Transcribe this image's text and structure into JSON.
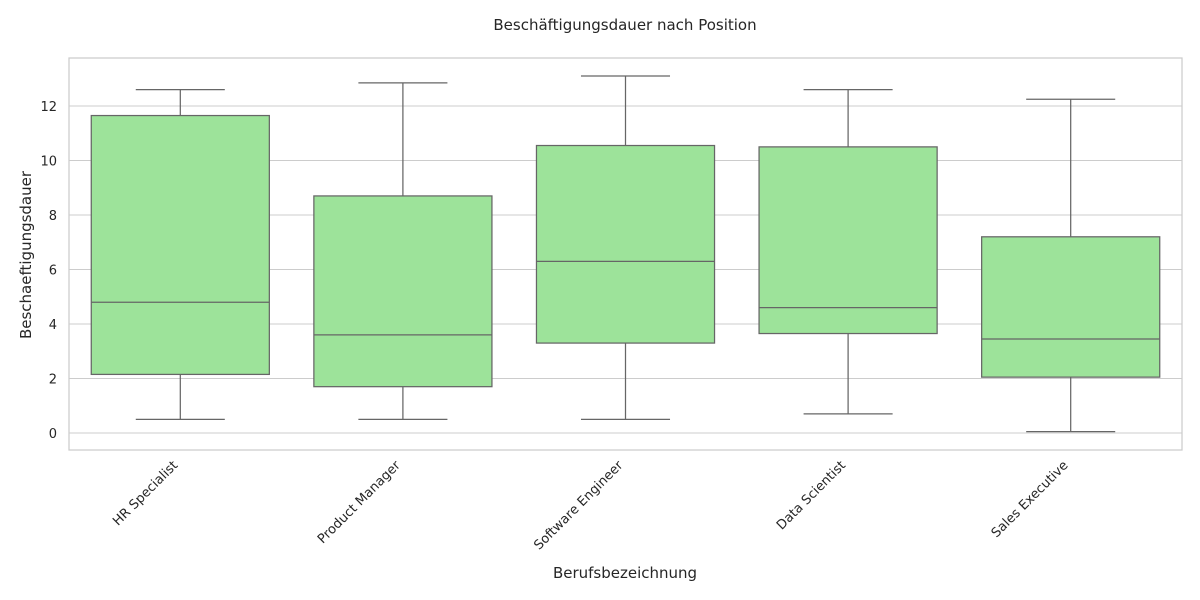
{
  "chart_data": {
    "type": "box",
    "title": "Beschäftigungsdauer nach Position",
    "xlabel": "Berufsbezeichnung",
    "ylabel": "Beschaeftigungsdauer",
    "categories": [
      "HR Specialist",
      "Product Manager",
      "Software Engineer",
      "Data Scientist",
      "Sales Executive"
    ],
    "boxes": [
      {
        "min": 0.5,
        "q1": 2.15,
        "median": 4.8,
        "q3": 11.65,
        "max": 12.6
      },
      {
        "min": 0.5,
        "q1": 1.7,
        "median": 3.6,
        "q3": 8.7,
        "max": 12.85
      },
      {
        "min": 0.5,
        "q1": 3.3,
        "median": 6.3,
        "q3": 10.55,
        "max": 13.1
      },
      {
        "min": 0.7,
        "q1": 3.65,
        "median": 4.6,
        "q3": 10.5,
        "max": 12.6
      },
      {
        "min": 0.05,
        "q1": 2.05,
        "median": 3.45,
        "q3": 7.2,
        "max": 12.25
      }
    ],
    "yticks": [
      0,
      2,
      4,
      6,
      8,
      10,
      12
    ],
    "ylim": [
      -0.6,
      13.8
    ],
    "grid": "horizontal",
    "colors": {
      "box_fill": "#9de39a",
      "line": "#666666",
      "grid": "#cccccc"
    }
  }
}
